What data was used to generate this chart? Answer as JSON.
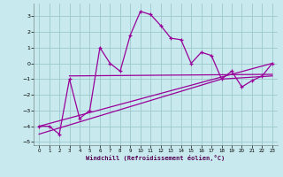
{
  "xlabel": "Windchill (Refroidissement éolien,°C)",
  "bg_color": "#c8eaee",
  "line_color": "#990099",
  "grid_color": "#9ec8cc",
  "xlim": [
    -0.5,
    23.5
  ],
  "ylim": [
    -5.2,
    3.8
  ],
  "yticks": [
    -5,
    -4,
    -3,
    -2,
    -1,
    0,
    1,
    2,
    3
  ],
  "xticks": [
    0,
    1,
    2,
    3,
    4,
    5,
    6,
    7,
    8,
    9,
    10,
    11,
    12,
    13,
    14,
    15,
    16,
    17,
    18,
    19,
    20,
    21,
    22,
    23
  ],
  "main_points": [
    [
      0,
      -4.0
    ],
    [
      1,
      -4.0
    ],
    [
      2,
      -4.5
    ],
    [
      3,
      -1.0
    ],
    [
      4,
      -3.5
    ],
    [
      5,
      -3.0
    ],
    [
      6,
      1.0
    ],
    [
      7,
      0.0
    ],
    [
      8,
      -0.5
    ],
    [
      9,
      1.8
    ],
    [
      10,
      3.3
    ],
    [
      11,
      3.1
    ],
    [
      12,
      2.4
    ],
    [
      13,
      1.6
    ],
    [
      14,
      1.5
    ],
    [
      15,
      0.0
    ],
    [
      16,
      0.7
    ],
    [
      17,
      0.5
    ],
    [
      18,
      -1.0
    ],
    [
      19,
      -0.5
    ],
    [
      20,
      -1.5
    ],
    [
      21,
      -1.1
    ],
    [
      22,
      -0.8
    ],
    [
      23,
      0.0
    ]
  ],
  "line_upper": [
    [
      0,
      -4.0
    ],
    [
      23,
      0.0
    ]
  ],
  "line_lower": [
    [
      0,
      -4.5
    ],
    [
      18,
      -1.0
    ],
    [
      23,
      -0.8
    ]
  ],
  "line_mid": [
    [
      3,
      -0.8
    ],
    [
      23,
      -0.7
    ]
  ]
}
